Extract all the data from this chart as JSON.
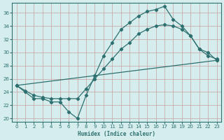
{
  "line1_x": [
    0,
    1,
    2,
    3,
    4,
    5,
    6,
    7,
    8,
    9,
    10,
    11,
    12,
    13,
    14,
    15,
    16,
    17,
    18,
    19,
    20,
    21,
    22,
    23
  ],
  "line1_y": [
    25.0,
    24.0,
    23.0,
    23.0,
    22.5,
    22.5,
    21.0,
    20.0,
    23.5,
    26.5,
    29.5,
    31.5,
    33.5,
    34.5,
    35.5,
    36.2,
    36.5,
    37.0,
    35.0,
    34.0,
    32.5,
    30.5,
    30.0,
    28.8
  ],
  "line2_x": [
    0,
    23
  ],
  "line2_y": [
    25.0,
    28.8
  ],
  "line3_x": [
    0,
    1,
    2,
    3,
    4,
    5,
    6,
    7,
    8,
    9,
    10,
    11,
    12,
    13,
    14,
    15,
    16,
    17,
    18,
    19,
    20,
    21,
    22,
    23
  ],
  "line3_y": [
    25.0,
    24.2,
    23.5,
    23.2,
    23.0,
    23.0,
    23.0,
    23.0,
    24.5,
    26.0,
    27.5,
    29.0,
    30.5,
    31.5,
    32.8,
    33.5,
    34.0,
    34.2,
    34.0,
    33.5,
    32.5,
    30.5,
    29.5,
    29.0
  ],
  "color": "#2e7070",
  "bg_color": "#d5eeed",
  "grid_color": "#b8d8d8",
  "xlim": [
    -0.5,
    23.5
  ],
  "ylim": [
    19.5,
    37.5
  ],
  "yticks": [
    20,
    22,
    24,
    26,
    28,
    30,
    32,
    34,
    36
  ],
  "xticks": [
    0,
    1,
    2,
    3,
    4,
    5,
    6,
    7,
    8,
    9,
    10,
    11,
    12,
    13,
    14,
    15,
    16,
    17,
    18,
    19,
    20,
    21,
    22,
    23
  ],
  "xlabel": "Humidex (Indice chaleur)",
  "marker": "D",
  "markersize": 2.2,
  "linewidth": 0.9
}
